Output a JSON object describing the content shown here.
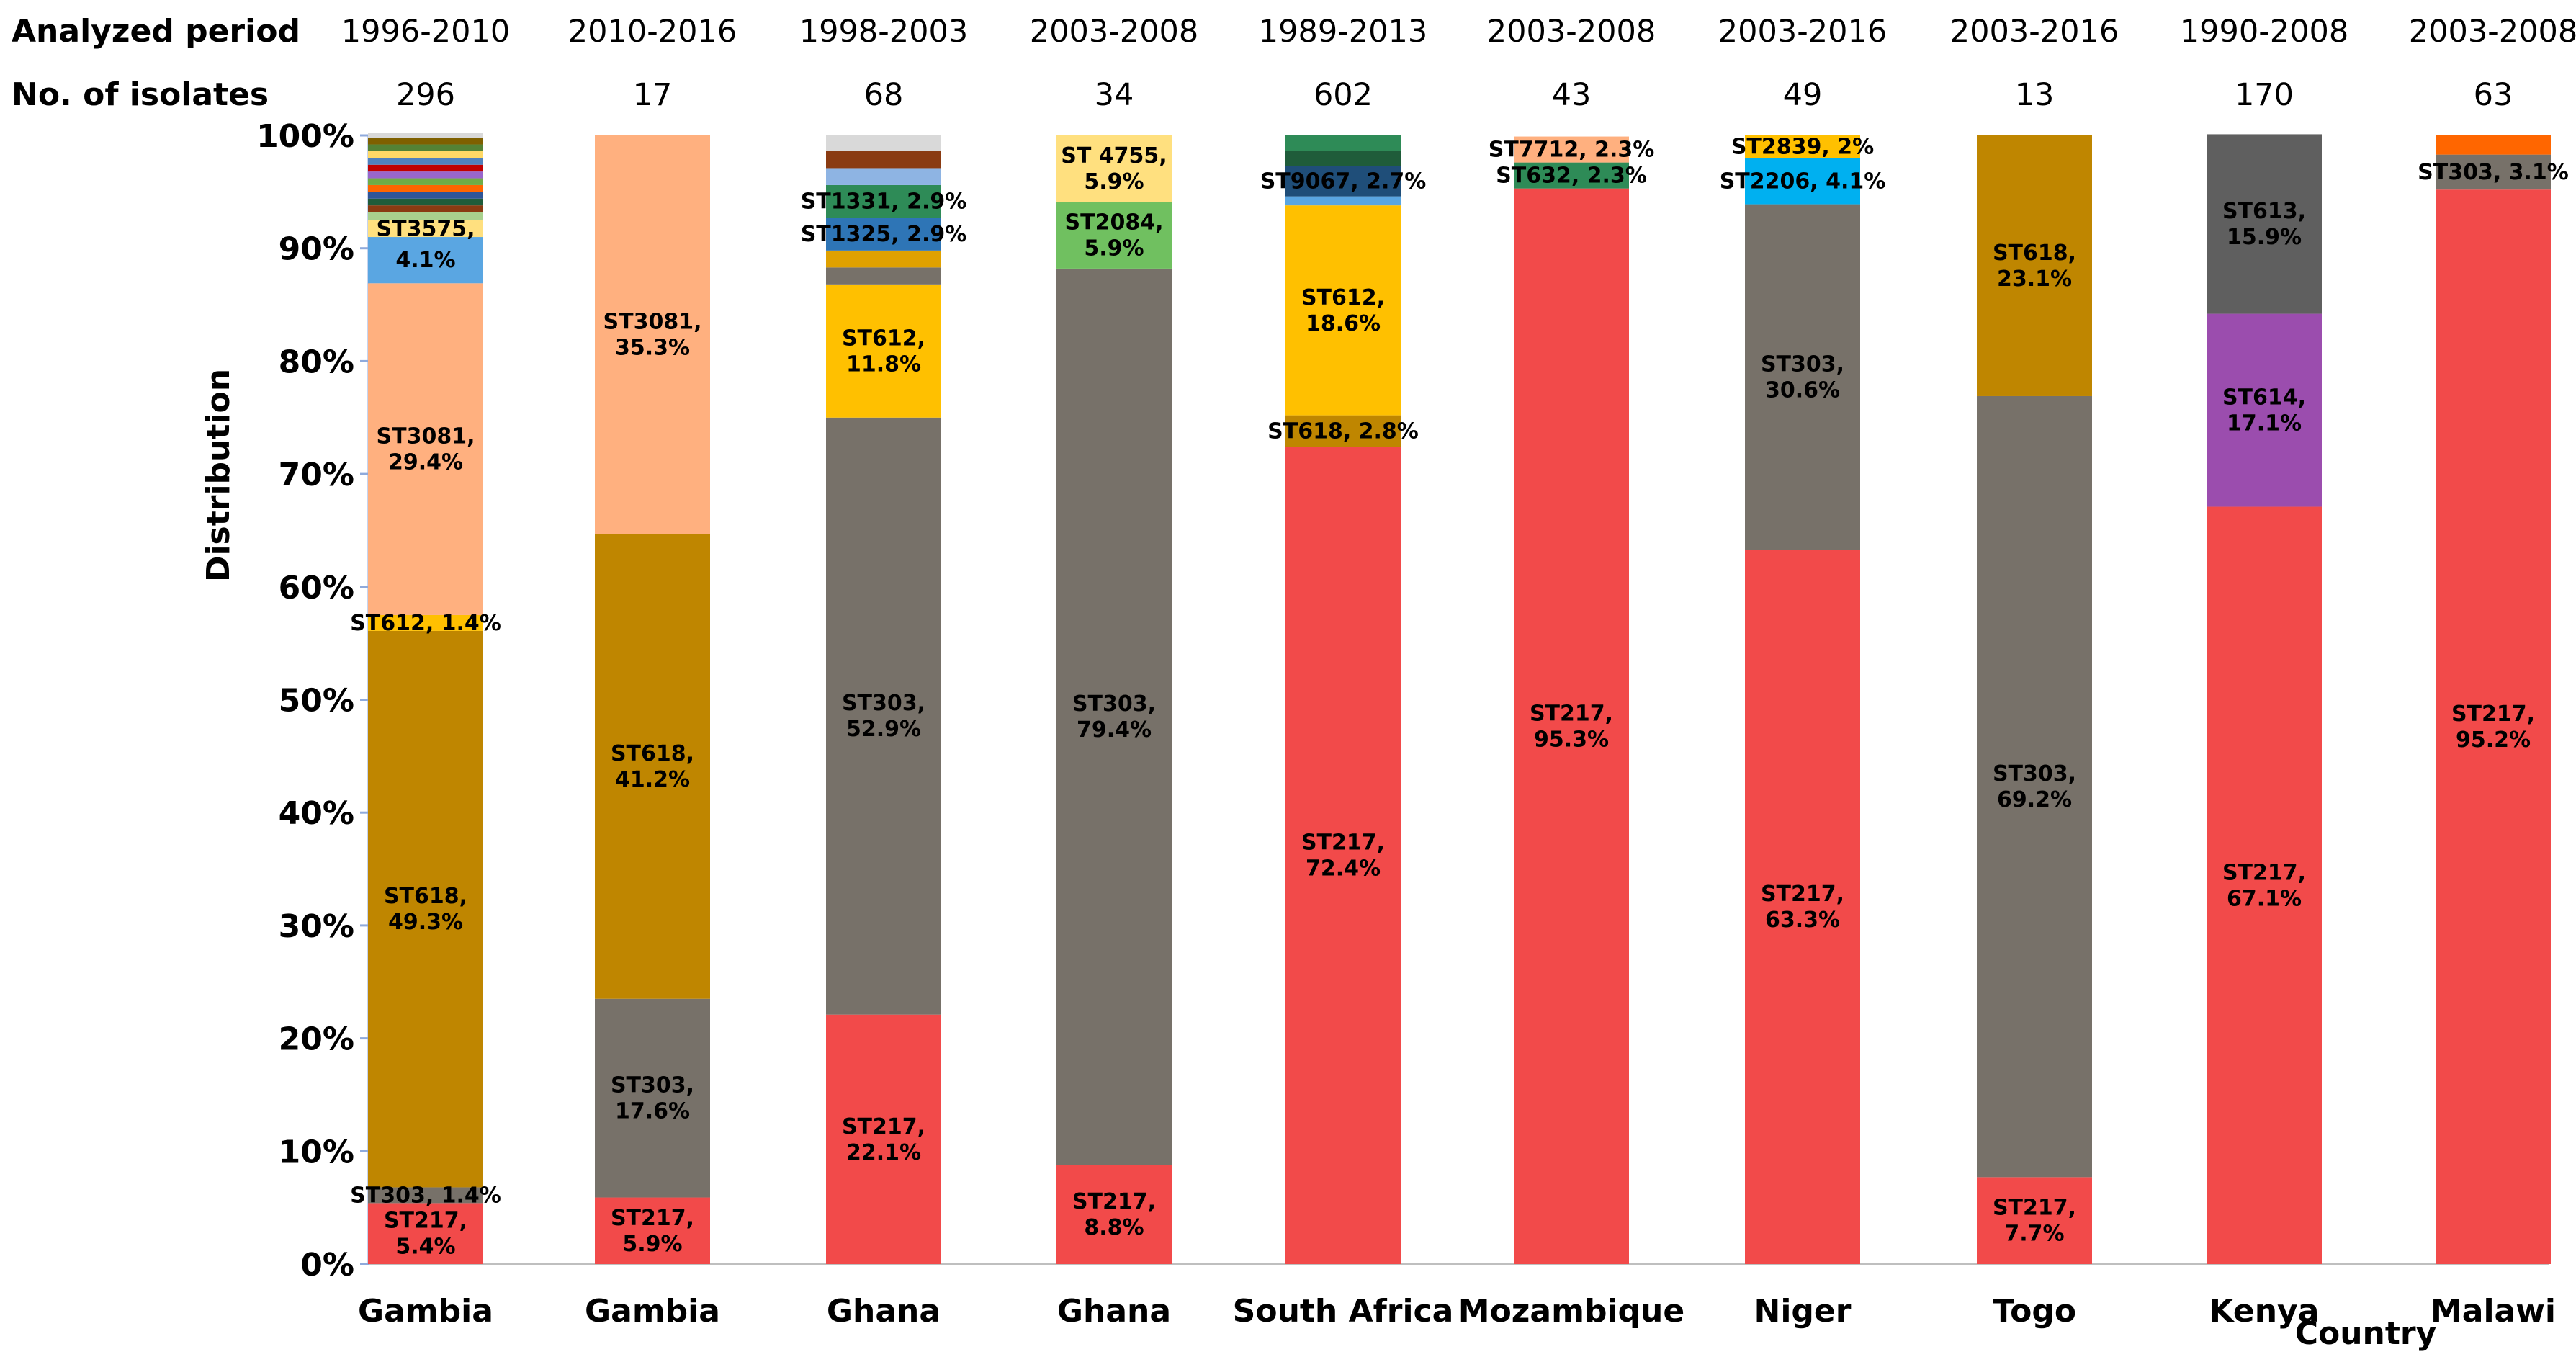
{
  "chart_data": {
    "type": "bar",
    "stacked": true,
    "ylabel": "Distribution",
    "xlabel": "Country",
    "ylim": [
      0,
      100
    ],
    "yticks": [
      "0%",
      "10%",
      "20%",
      "30%",
      "40%",
      "50%",
      "60%",
      "70%",
      "80%",
      "90%",
      "100%"
    ],
    "header_rows": [
      {
        "label": "Analyzed period",
        "values": [
          "1996-2010",
          "2010-2016",
          "1998-2003",
          "2003-2008",
          "1989-2013",
          "2003-2008",
          "2003-2016",
          "2003-2016",
          "1990-2008",
          "2003-2008"
        ]
      },
      {
        "label": "No. of isolates",
        "values": [
          "296",
          "17",
          "68",
          "34",
          "602",
          "43",
          "49",
          "13",
          "170",
          "63"
        ]
      }
    ],
    "bars": [
      {
        "country": "Gambia",
        "segments": [
          {
            "st": "ST217",
            "value": 5.4,
            "color": "#f24a4a",
            "label": "ST217,\n5.4%"
          },
          {
            "st": "ST303",
            "value": 1.4,
            "color": "#777169",
            "label": "ST303, 1.4%"
          },
          {
            "st": "ST618",
            "value": 49.3,
            "color": "#bf8600",
            "label": "ST618,\n49.3%"
          },
          {
            "st": "ST612",
            "value": 1.4,
            "color": "#ffc000",
            "label": "ST612, 1.4%"
          },
          {
            "st": "ST3081",
            "value": 29.4,
            "color": "#ffb07f",
            "label": "ST3081,\n29.4%"
          },
          {
            "st": "other-1",
            "value": 4.1,
            "color": "#5aa6e2",
            "label": "4.1%"
          },
          {
            "st": "ST3575",
            "value": 1.5,
            "color": "#ffe07f",
            "label": "ST3575,"
          },
          {
            "st": "other-2",
            "value": 0.7,
            "color": "#a9d18e",
            "label": ""
          },
          {
            "st": "other-3",
            "value": 0.6,
            "color": "#8a3b12",
            "label": ""
          },
          {
            "st": "other-4",
            "value": 0.6,
            "color": "#1f5c3a",
            "label": ""
          },
          {
            "st": "other-5",
            "value": 0.6,
            "color": "#2f5597",
            "label": ""
          },
          {
            "st": "other-6",
            "value": 0.6,
            "color": "#ff6600",
            "label": ""
          },
          {
            "st": "other-7",
            "value": 0.6,
            "color": "#70ad47",
            "label": ""
          },
          {
            "st": "other-8",
            "value": 0.6,
            "color": "#9966cc",
            "label": ""
          },
          {
            "st": "other-9",
            "value": 0.6,
            "color": "#c00000",
            "label": ""
          },
          {
            "st": "other-10",
            "value": 0.6,
            "color": "#4f81bd",
            "label": ""
          },
          {
            "st": "other-11",
            "value": 0.6,
            "color": "#ffd966",
            "label": ""
          },
          {
            "st": "other-12",
            "value": 0.6,
            "color": "#548235",
            "label": ""
          },
          {
            "st": "other-13",
            "value": 0.6,
            "color": "#7f6000",
            "label": ""
          },
          {
            "st": "other-14",
            "value": 0.4,
            "color": "#d9d9d9",
            "label": ""
          }
        ]
      },
      {
        "country": "Gambia",
        "segments": [
          {
            "st": "ST217",
            "value": 5.9,
            "color": "#f24a4a",
            "label": "ST217,\n5.9%"
          },
          {
            "st": "ST303",
            "value": 17.6,
            "color": "#777169",
            "label": "ST303,\n17.6%"
          },
          {
            "st": "ST618",
            "value": 41.2,
            "color": "#bf8600",
            "label": "ST618,\n41.2%"
          },
          {
            "st": "ST3081",
            "value": 35.3,
            "color": "#ffb07f",
            "label": "ST3081,\n35.3%"
          }
        ]
      },
      {
        "country": "Ghana",
        "segments": [
          {
            "st": "ST217",
            "value": 22.1,
            "color": "#f24a4a",
            "label": "ST217,\n22.1%"
          },
          {
            "st": "ST303",
            "value": 52.9,
            "color": "#777169",
            "label": "ST303,\n52.9%"
          },
          {
            "st": "ST612",
            "value": 11.8,
            "color": "#ffc000",
            "label": "ST612,\n11.8%"
          },
          {
            "st": "other-1",
            "value": 1.5,
            "color": "#777169",
            "label": ""
          },
          {
            "st": "other-2",
            "value": 1.5,
            "color": "#e0a100",
            "label": ""
          },
          {
            "st": "ST1325",
            "value": 2.9,
            "color": "#2e75b6",
            "label": "ST1325, 2.9%"
          },
          {
            "st": "ST1331",
            "value": 2.9,
            "color": "#2e8b57",
            "label": "ST1331, 2.9%"
          },
          {
            "st": "other-3",
            "value": 1.5,
            "color": "#8eb4e3",
            "label": ""
          },
          {
            "st": "other-4",
            "value": 1.5,
            "color": "#8a3b12",
            "label": ""
          },
          {
            "st": "other-5",
            "value": 1.4,
            "color": "#d9d9d9",
            "label": ""
          }
        ]
      },
      {
        "country": "Ghana",
        "segments": [
          {
            "st": "ST217",
            "value": 8.8,
            "color": "#f24a4a",
            "label": "ST217,\n8.8%"
          },
          {
            "st": "ST303",
            "value": 79.4,
            "color": "#777169",
            "label": "ST303,\n79.4%"
          },
          {
            "st": "ST2084",
            "value": 5.9,
            "color": "#70c060",
            "label": "ST2084,\n5.9%"
          },
          {
            "st": "ST 4755",
            "value": 5.9,
            "color": "#ffe07f",
            "label": "ST 4755,\n5.9%"
          }
        ]
      },
      {
        "country": "South Africa",
        "segments": [
          {
            "st": "ST217",
            "value": 72.4,
            "color": "#f24a4a",
            "label": "ST217,\n72.4%"
          },
          {
            "st": "ST618",
            "value": 2.8,
            "color": "#bf8600",
            "label": "ST618, 2.8%"
          },
          {
            "st": "ST612",
            "value": 18.6,
            "color": "#ffc000",
            "label": "ST612,\n18.6%"
          },
          {
            "st": "other-1",
            "value": 0.8,
            "color": "#5aa6e2",
            "label": ""
          },
          {
            "st": "ST9067",
            "value": 2.7,
            "color": "#1f4e79",
            "label": "ST9067, 2.7%"
          },
          {
            "st": "other-2",
            "value": 1.3,
            "color": "#1f5c3a",
            "label": ""
          },
          {
            "st": "other-3",
            "value": 1.4,
            "color": "#2e8b57",
            "label": ""
          }
        ]
      },
      {
        "country": "Mozambique",
        "segments": [
          {
            "st": "ST217",
            "value": 95.3,
            "color": "#f24a4a",
            "label": "ST217,\n95.3%"
          },
          {
            "st": "ST632",
            "value": 2.3,
            "color": "#2e8b57",
            "label": "ST632, 2.3%"
          },
          {
            "st": "ST7712",
            "value": 2.3,
            "color": "#ffb07f",
            "label": "ST7712, 2.3%"
          }
        ]
      },
      {
        "country": "Niger",
        "segments": [
          {
            "st": "ST217",
            "value": 63.3,
            "color": "#f24a4a",
            "label": "ST217,\n63.3%"
          },
          {
            "st": "ST303",
            "value": 30.6,
            "color": "#777169",
            "label": "ST303,\n30.6%"
          },
          {
            "st": "ST2206",
            "value": 4.1,
            "color": "#00b0f0",
            "label": "ST2206, 4.1%"
          },
          {
            "st": "ST2839",
            "value": 2.0,
            "color": "#ffc000",
            "label": "ST2839, 2%"
          }
        ]
      },
      {
        "country": "Togo",
        "segments": [
          {
            "st": "ST217",
            "value": 7.7,
            "color": "#f24a4a",
            "label": "ST217,\n7.7%"
          },
          {
            "st": "ST303",
            "value": 69.2,
            "color": "#777169",
            "label": "ST303,\n69.2%"
          },
          {
            "st": "ST618",
            "value": 23.1,
            "color": "#bf8600",
            "label": "ST618,\n23.1%"
          }
        ]
      },
      {
        "country": "Kenya",
        "segments": [
          {
            "st": "ST217",
            "value": 67.1,
            "color": "#f24a4a",
            "label": "ST217,\n67.1%"
          },
          {
            "st": "ST614",
            "value": 17.1,
            "color": "#9b4dae",
            "label": "ST614,\n17.1%"
          },
          {
            "st": "ST613",
            "value": 15.9,
            "color": "#5f5f5f",
            "label": "ST613,\n15.9%"
          }
        ]
      },
      {
        "country": "Malawi",
        "segments": [
          {
            "st": "ST217",
            "value": 95.2,
            "color": "#f24a4a",
            "label": "ST217,\n95.2%"
          },
          {
            "st": "ST303",
            "value": 3.1,
            "color": "#777169",
            "label": "ST303, 3.1%"
          },
          {
            "st": "other-1",
            "value": 1.7,
            "color": "#ff6600",
            "label": ""
          }
        ]
      }
    ]
  }
}
